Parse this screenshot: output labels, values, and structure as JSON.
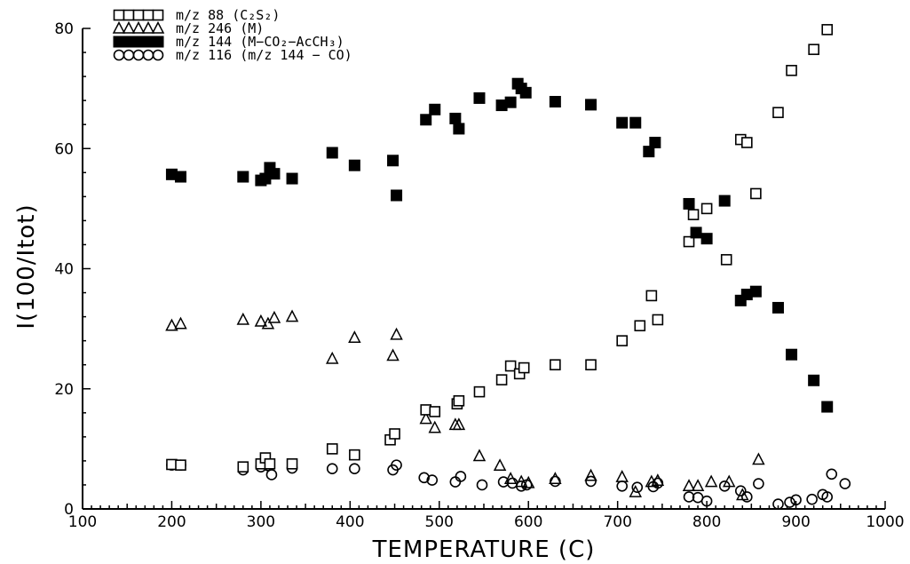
{
  "chart_data": {
    "type": "scatter",
    "title": "",
    "xlabel": "TEMPERATURE (C)",
    "ylabel": "I(100/Itot)",
    "xlim": [
      100,
      1000
    ],
    "ylim": [
      0,
      80
    ],
    "x_ticks": [
      100,
      200,
      300,
      400,
      500,
      600,
      700,
      800,
      900,
      1000
    ],
    "y_ticks": [
      0,
      20,
      40,
      60,
      80
    ],
    "grid": false,
    "legend_position": "top-left",
    "series": [
      {
        "name": "m/z 88 (C2S2)",
        "marker": "open-square",
        "points": [
          [
            200,
            7.4
          ],
          [
            210,
            7.3
          ],
          [
            280,
            7.0
          ],
          [
            300,
            7.5
          ],
          [
            305,
            8.5
          ],
          [
            310,
            7.5
          ],
          [
            335,
            7.5
          ],
          [
            380,
            10.0
          ],
          [
            405,
            9.0
          ],
          [
            445,
            11.5
          ],
          [
            450,
            12.5
          ],
          [
            485,
            16.5
          ],
          [
            495,
            16.2
          ],
          [
            520,
            17.5
          ],
          [
            522,
            18.0
          ],
          [
            545,
            19.5
          ],
          [
            570,
            21.5
          ],
          [
            580,
            23.8
          ],
          [
            590,
            22.5
          ],
          [
            595,
            23.5
          ],
          [
            630,
            24.0
          ],
          [
            670,
            24.0
          ],
          [
            705,
            28.0
          ],
          [
            725,
            30.5
          ],
          [
            738,
            35.5
          ],
          [
            745,
            31.5
          ],
          [
            780,
            44.5
          ],
          [
            785,
            49.0
          ],
          [
            800,
            50.0
          ],
          [
            822,
            41.5
          ],
          [
            838,
            61.5
          ],
          [
            845,
            61.0
          ],
          [
            855,
            52.5
          ],
          [
            880,
            66.0
          ],
          [
            895,
            73.0
          ],
          [
            920,
            76.5
          ],
          [
            935,
            79.8
          ]
        ]
      },
      {
        "name": "m/z 246 (M)",
        "marker": "open-triangle",
        "points": [
          [
            200,
            30.5
          ],
          [
            210,
            30.8
          ],
          [
            280,
            31.5
          ],
          [
            300,
            31.2
          ],
          [
            308,
            30.8
          ],
          [
            315,
            31.8
          ],
          [
            335,
            32.0
          ],
          [
            380,
            25.0
          ],
          [
            405,
            28.5
          ],
          [
            448,
            25.5
          ],
          [
            452,
            29.0
          ],
          [
            485,
            15.0
          ],
          [
            495,
            13.5
          ],
          [
            518,
            14.0
          ],
          [
            522,
            14.0
          ],
          [
            545,
            8.8
          ],
          [
            568,
            7.2
          ],
          [
            580,
            5.0
          ],
          [
            592,
            4.5
          ],
          [
            600,
            4.3
          ],
          [
            630,
            5.0
          ],
          [
            670,
            5.5
          ],
          [
            705,
            5.3
          ],
          [
            720,
            2.8
          ],
          [
            738,
            4.5
          ],
          [
            745,
            4.7
          ],
          [
            780,
            3.8
          ],
          [
            790,
            3.8
          ],
          [
            805,
            4.5
          ],
          [
            825,
            4.5
          ],
          [
            840,
            2.3
          ],
          [
            858,
            8.2
          ]
        ]
      },
      {
        "name": "m/z 144 (M-CO2-AcCH3)",
        "marker": "filled-square",
        "points": [
          [
            200,
            55.7
          ],
          [
            210,
            55.3
          ],
          [
            280,
            55.3
          ],
          [
            300,
            54.7
          ],
          [
            305,
            55.0
          ],
          [
            310,
            56.8
          ],
          [
            315,
            55.8
          ],
          [
            335,
            55.0
          ],
          [
            380,
            59.3
          ],
          [
            405,
            57.2
          ],
          [
            448,
            58.0
          ],
          [
            452,
            52.2
          ],
          [
            485,
            64.8
          ],
          [
            495,
            66.5
          ],
          [
            518,
            65.0
          ],
          [
            522,
            63.3
          ],
          [
            545,
            68.4
          ],
          [
            570,
            67.2
          ],
          [
            580,
            67.7
          ],
          [
            588,
            70.8
          ],
          [
            592,
            70.0
          ],
          [
            597,
            69.3
          ],
          [
            630,
            67.8
          ],
          [
            670,
            67.3
          ],
          [
            705,
            64.3
          ],
          [
            720,
            64.3
          ],
          [
            735,
            59.5
          ],
          [
            742,
            61.0
          ],
          [
            780,
            50.8
          ],
          [
            788,
            46.0
          ],
          [
            800,
            45.0
          ],
          [
            820,
            51.3
          ],
          [
            838,
            34.7
          ],
          [
            845,
            35.7
          ],
          [
            855,
            36.2
          ],
          [
            880,
            33.5
          ],
          [
            895,
            25.7
          ],
          [
            920,
            21.4
          ],
          [
            935,
            17.0
          ]
        ]
      },
      {
        "name": "m/z 116 (m/z 144 - CO)",
        "marker": "open-circle",
        "points": [
          [
            200,
            7.3
          ],
          [
            210,
            7.3
          ],
          [
            280,
            6.5
          ],
          [
            300,
            7.0
          ],
          [
            308,
            7.2
          ],
          [
            312,
            5.7
          ],
          [
            335,
            6.8
          ],
          [
            380,
            6.7
          ],
          [
            405,
            6.7
          ],
          [
            448,
            6.5
          ],
          [
            452,
            7.3
          ],
          [
            483,
            5.2
          ],
          [
            492,
            4.8
          ],
          [
            518,
            4.5
          ],
          [
            524,
            5.4
          ],
          [
            548,
            4.0
          ],
          [
            572,
            4.5
          ],
          [
            582,
            4.3
          ],
          [
            592,
            3.8
          ],
          [
            598,
            4.0
          ],
          [
            630,
            4.6
          ],
          [
            670,
            4.6
          ],
          [
            705,
            3.8
          ],
          [
            722,
            3.6
          ],
          [
            740,
            3.7
          ],
          [
            745,
            4.3
          ],
          [
            780,
            2.0
          ],
          [
            790,
            1.9
          ],
          [
            800,
            1.3
          ],
          [
            820,
            3.8
          ],
          [
            838,
            3.0
          ],
          [
            845,
            2.0
          ],
          [
            858,
            4.2
          ],
          [
            880,
            0.8
          ],
          [
            893,
            1.1
          ],
          [
            900,
            1.5
          ],
          [
            918,
            1.6
          ],
          [
            930,
            2.4
          ],
          [
            935,
            2.0
          ],
          [
            940,
            5.8
          ],
          [
            955,
            4.2
          ]
        ]
      }
    ],
    "legend": [
      {
        "symbols": "□□□□□",
        "text": "m/z 88 (C₂S₂)"
      },
      {
        "symbols": "△△△△△",
        "text": "m/z 246 (M)"
      },
      {
        "symbols": "■■■■■",
        "text": "m/z 144 (M−CO₂−AcCH₃)"
      },
      {
        "symbols": "○○○○○",
        "text": "m/z 116 (m/z 144 − CO)"
      }
    ]
  }
}
